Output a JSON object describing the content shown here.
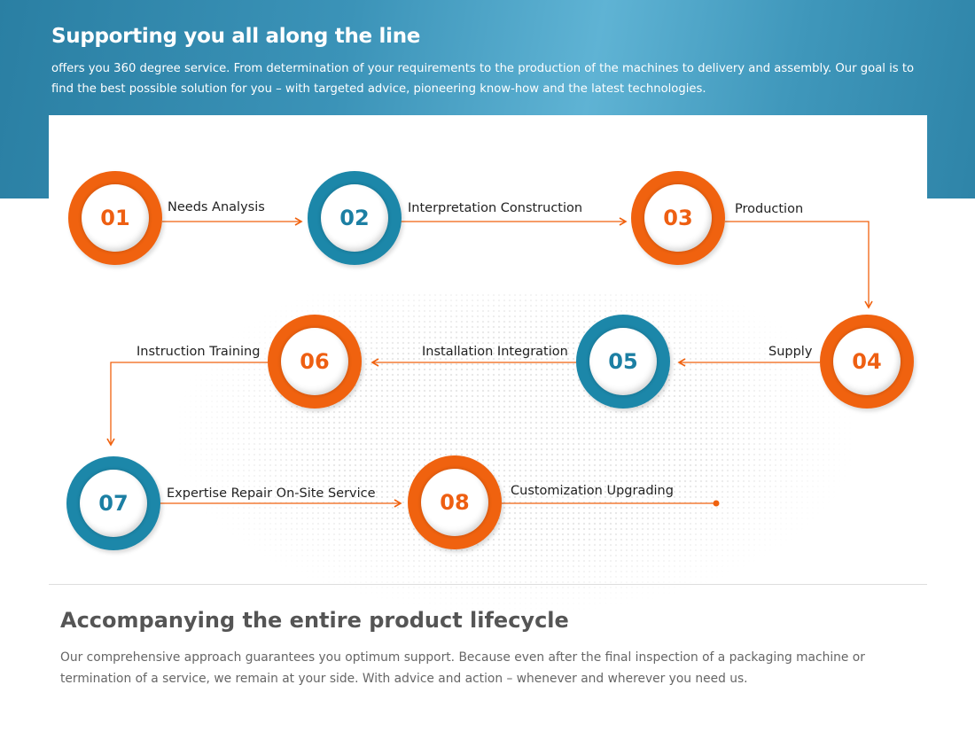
{
  "hero": {
    "title": "Supporting you all along the line",
    "text": "offers you 360 degree service. From determination of your requirements to the production of the machines to delivery and assembly. Our goal is to find the best possible solution for you – with targeted advice, pioneering know-how and the latest technologies."
  },
  "colors": {
    "orange": "#f0620f",
    "blue": "#1c87a9"
  },
  "steps": [
    {
      "number": "01",
      "label": "Needs Analysis",
      "color": "orange"
    },
    {
      "number": "02",
      "label": "Interpretation Construction",
      "color": "blue"
    },
    {
      "number": "03",
      "label": "Production",
      "color": "orange"
    },
    {
      "number": "04",
      "label": "Supply",
      "color": "orange"
    },
    {
      "number": "05",
      "label": "Installation Integration",
      "color": "blue"
    },
    {
      "number": "06",
      "label": "Instruction Training",
      "color": "orange"
    },
    {
      "number": "07",
      "label": "Expertise Repair On-Site Service",
      "color": "blue"
    },
    {
      "number": "08",
      "label": "Customization Upgrading",
      "color": "orange"
    }
  ],
  "section": {
    "title": "Accompanying the entire product lifecycle",
    "text": "Our comprehensive approach guarantees you optimum support. Because even after the final inspection of a packaging machine or termination of a service, we remain at your side. With advice and action – whenever and wherever you need us."
  }
}
